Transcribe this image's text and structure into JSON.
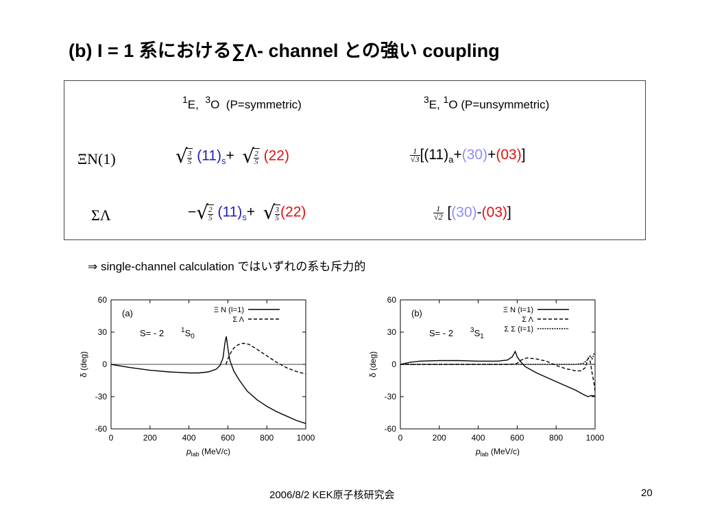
{
  "title": "(b) I = 1 系における∑Λ- channel との強い coupling",
  "table": {
    "col1_header": {
      "sup1": "1",
      "e": "E,",
      "sup2": "3",
      "o": "O",
      "desc": "(P=symmetric)"
    },
    "col2_header": {
      "sup1": "3",
      "e": "E,",
      "sup2": "1",
      "o": "O",
      "desc": "(P=unsymmetric)"
    },
    "row1": {
      "label": "ΞN(1)",
      "c1": {
        "f1": {
          "n": "3",
          "d": "5"
        },
        "t1": "(11)",
        "s1": "s",
        "plus": "+",
        "f2": {
          "n": "2",
          "d": "5"
        },
        "t2": "(22)"
      },
      "c2": {
        "pre": {
          "n": "1",
          "d": "√3"
        },
        "open": "[(11)",
        "sa": "a",
        "plus1": "+",
        "t30": "(30)",
        "plus2": "+",
        "t03": "(03)",
        "close": "]"
      }
    },
    "row2": {
      "label": "ΣΛ",
      "c1": {
        "minus": "−",
        "f1": {
          "n": "2",
          "d": "5"
        },
        "t1": "(11)",
        "s1": "s",
        "plus": "+",
        "f2": {
          "n": "3",
          "d": "5"
        },
        "t2": "(22)"
      },
      "c2": {
        "pre": {
          "n": "1",
          "d": "√2"
        },
        "open": "[",
        "t30": "(30)",
        "dash": "-",
        "t03": "(03)",
        "close": "]"
      }
    }
  },
  "note": "⇒ single-channel calculation ではいずれの系も斥力的",
  "footer": "2006/8/2  KEK原子核研究会",
  "page_number": "20",
  "colors": {
    "blue": "#1f1fb0",
    "red": "#e01010",
    "light_blue": "#8c8cff"
  },
  "chart_data": [
    {
      "type": "line",
      "panel": "(a)",
      "annotation": "S= - 2",
      "state": {
        "sup": "1",
        "base": "S",
        "sub": "0"
      },
      "xlabel": "p_lab (MeV/c)",
      "ylabel": "δ (deg)",
      "xlim": [
        0,
        1000
      ],
      "ylim": [
        -60,
        60
      ],
      "xticks": [
        "0",
        "200",
        "400",
        "600",
        "800",
        "1000"
      ],
      "yticks": [
        "60",
        "30",
        "0",
        "-30",
        "-60"
      ],
      "legend_position": "top-right",
      "series": [
        {
          "name": "Ξ N (I=1)",
          "style": "solid",
          "x": [
            0,
            50,
            100,
            200,
            300,
            400,
            450,
            500,
            540,
            560,
            575,
            585,
            592,
            600,
            610,
            630,
            660,
            700,
            750,
            800,
            850,
            900,
            950,
            1000
          ],
          "y": [
            0,
            -1.5,
            -3,
            -5.5,
            -7,
            -8,
            -8,
            -7,
            -4.5,
            -1,
            6,
            20,
            26,
            15,
            4,
            -6,
            -15,
            -25,
            -33,
            -39,
            -44,
            -48,
            -52,
            -55
          ]
        },
        {
          "name": "Σ Λ",
          "style": "dashed",
          "x": [
            590,
            600,
            615,
            630,
            650,
            670,
            690,
            710,
            750,
            800,
            850,
            900,
            950,
            1000
          ],
          "y": [
            0,
            5,
            11,
            15,
            18,
            19.5,
            19.5,
            18.5,
            14,
            8,
            2,
            -3,
            -6.5,
            -9
          ]
        }
      ]
    },
    {
      "type": "line",
      "panel": "(b)",
      "annotation": "S= - 2",
      "state": {
        "sup": "3",
        "base": "S",
        "sub": "1"
      },
      "xlabel": "p_lab (MeV/c)",
      "ylabel": "δ (deg)",
      "xlim": [
        0,
        1000
      ],
      "ylim": [
        -60,
        60
      ],
      "xticks": [
        "0",
        "200",
        "400",
        "600",
        "800",
        "1000"
      ],
      "yticks": [
        "60",
        "30",
        "0",
        "-30",
        "-60"
      ],
      "legend_position": "top-right",
      "series": [
        {
          "name": "Ξ N (I=1)",
          "style": "solid",
          "x": [
            0,
            50,
            100,
            200,
            300,
            400,
            500,
            550,
            575,
            590,
            600,
            615,
            640,
            700,
            800,
            900,
            950,
            965,
            980,
            1000
          ],
          "y": [
            0,
            2,
            3,
            3.5,
            3.5,
            3,
            3,
            4,
            7,
            12,
            7,
            3,
            -2,
            -8,
            -16,
            -24,
            -29,
            -30,
            -29,
            -29.5
          ]
        },
        {
          "name": "Σ Λ",
          "style": "dashed",
          "x": [
            0,
            400,
            560,
            590,
            600,
            620,
            650,
            700,
            750,
            800,
            850,
            900,
            930,
            950,
            965,
            975,
            985,
            995,
            1000
          ],
          "y": [
            0,
            0,
            0,
            0.5,
            1,
            4,
            6,
            5,
            3,
            -1,
            -4,
            -6,
            -6,
            -3,
            6,
            3,
            -8,
            -18,
            -25
          ]
        },
        {
          "name": "Σ Σ (I=1)",
          "style": "dotted",
          "x": [
            0,
            800,
            900,
            940,
            960,
            975,
            985,
            995,
            1000
          ],
          "y": [
            0,
            0,
            0,
            1,
            4,
            8,
            5,
            10,
            11
          ]
        }
      ]
    }
  ]
}
